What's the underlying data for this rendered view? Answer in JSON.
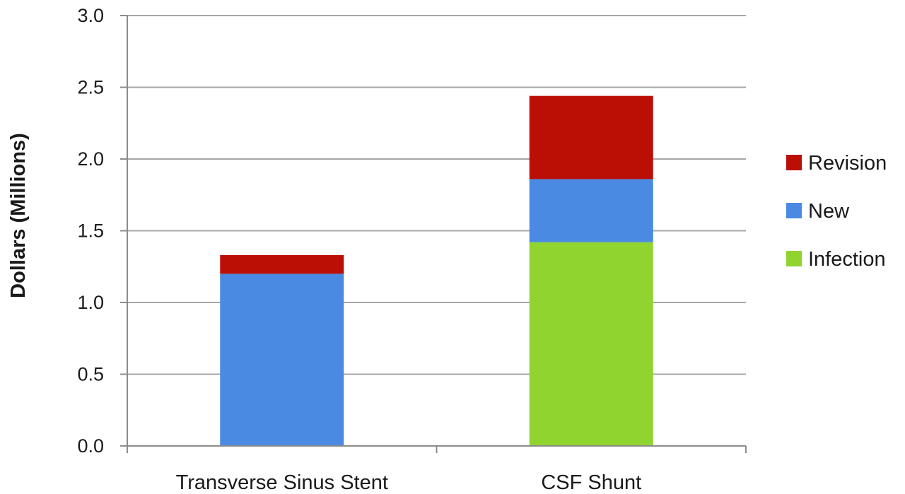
{
  "chart_data": {
    "type": "bar",
    "stacked": true,
    "title": "",
    "xlabel": "",
    "ylabel": "Dollars (Millions)",
    "ylim": [
      0,
      3.0
    ],
    "yticks": [
      "0.0",
      "0.5",
      "1.0",
      "1.5",
      "2.0",
      "2.5",
      "3.0"
    ],
    "grid": true,
    "legend_position": "right",
    "categories": [
      "Transverse Sinus Stent",
      "CSF Shunt"
    ],
    "series": [
      {
        "name": "Infection",
        "color": "#8fd42f",
        "values": [
          0,
          1.42
        ]
      },
      {
        "name": "New",
        "color": "#4a8ae2",
        "values": [
          1.2,
          0.44
        ]
      },
      {
        "name": "Revision",
        "color": "#bb0f06",
        "values": [
          0.13,
          0.58
        ]
      }
    ],
    "legend_order": [
      "Revision",
      "New",
      "Infection"
    ]
  }
}
